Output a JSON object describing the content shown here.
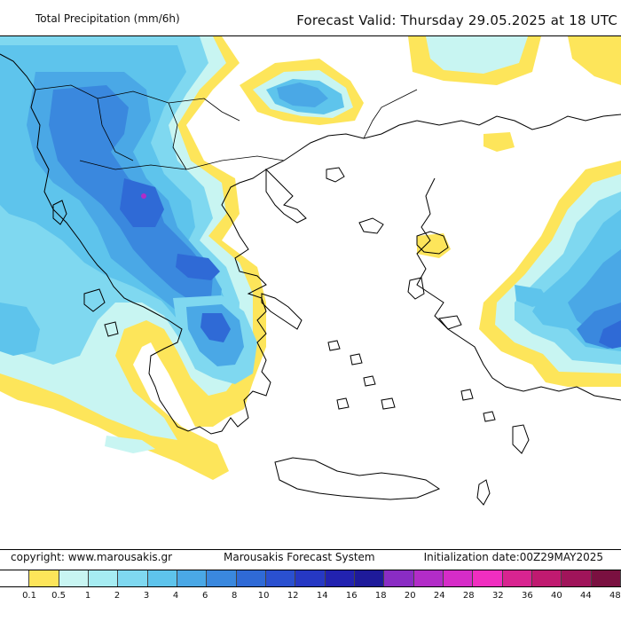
{
  "header": {
    "title_left": "Total Precipitation (mm/6h)",
    "title_right": "Forecast Valid:  Thursday 29.05.2025 at 18 UTC"
  },
  "footer": {
    "copyright": "copyright: www.marousakis.gr",
    "system": "Marousakis Forecast System",
    "init": "Initialization date:00Z29MAY2025"
  },
  "legend": {
    "labels": [
      "0.1",
      "0.5",
      "1",
      "2",
      "3",
      "4",
      "6",
      "8",
      "10",
      "12",
      "14",
      "16",
      "18",
      "20",
      "24",
      "28",
      "32",
      "36",
      "40",
      "44",
      "48"
    ],
    "colors": [
      "#ffffff",
      "#fde55a",
      "#c8f5f2",
      "#a6ecf2",
      "#7fd8f0",
      "#5ec4ec",
      "#4aa8e6",
      "#3a88de",
      "#2f6ad6",
      "#2a50d0",
      "#2638c4",
      "#2222b0",
      "#1e1a9a",
      "#8a2cc4",
      "#b22cc8",
      "#d62cc8",
      "#f02ec0",
      "#d82490",
      "#c01a70",
      "#a0145a",
      "#7a1040"
    ]
  },
  "map": {
    "palette": {
      "yellow": "#fde55a",
      "cyan_light": "#c8f5f2",
      "cyan": "#a6ecf2",
      "sky": "#7fd8f0",
      "blue_light": "#5ec4ec",
      "blue": "#4aa8e6",
      "blue_mid": "#3a88de",
      "blue_dark": "#2f6ad6",
      "blue_deep": "#2638c4",
      "magenta": "#b22cc8"
    }
  }
}
